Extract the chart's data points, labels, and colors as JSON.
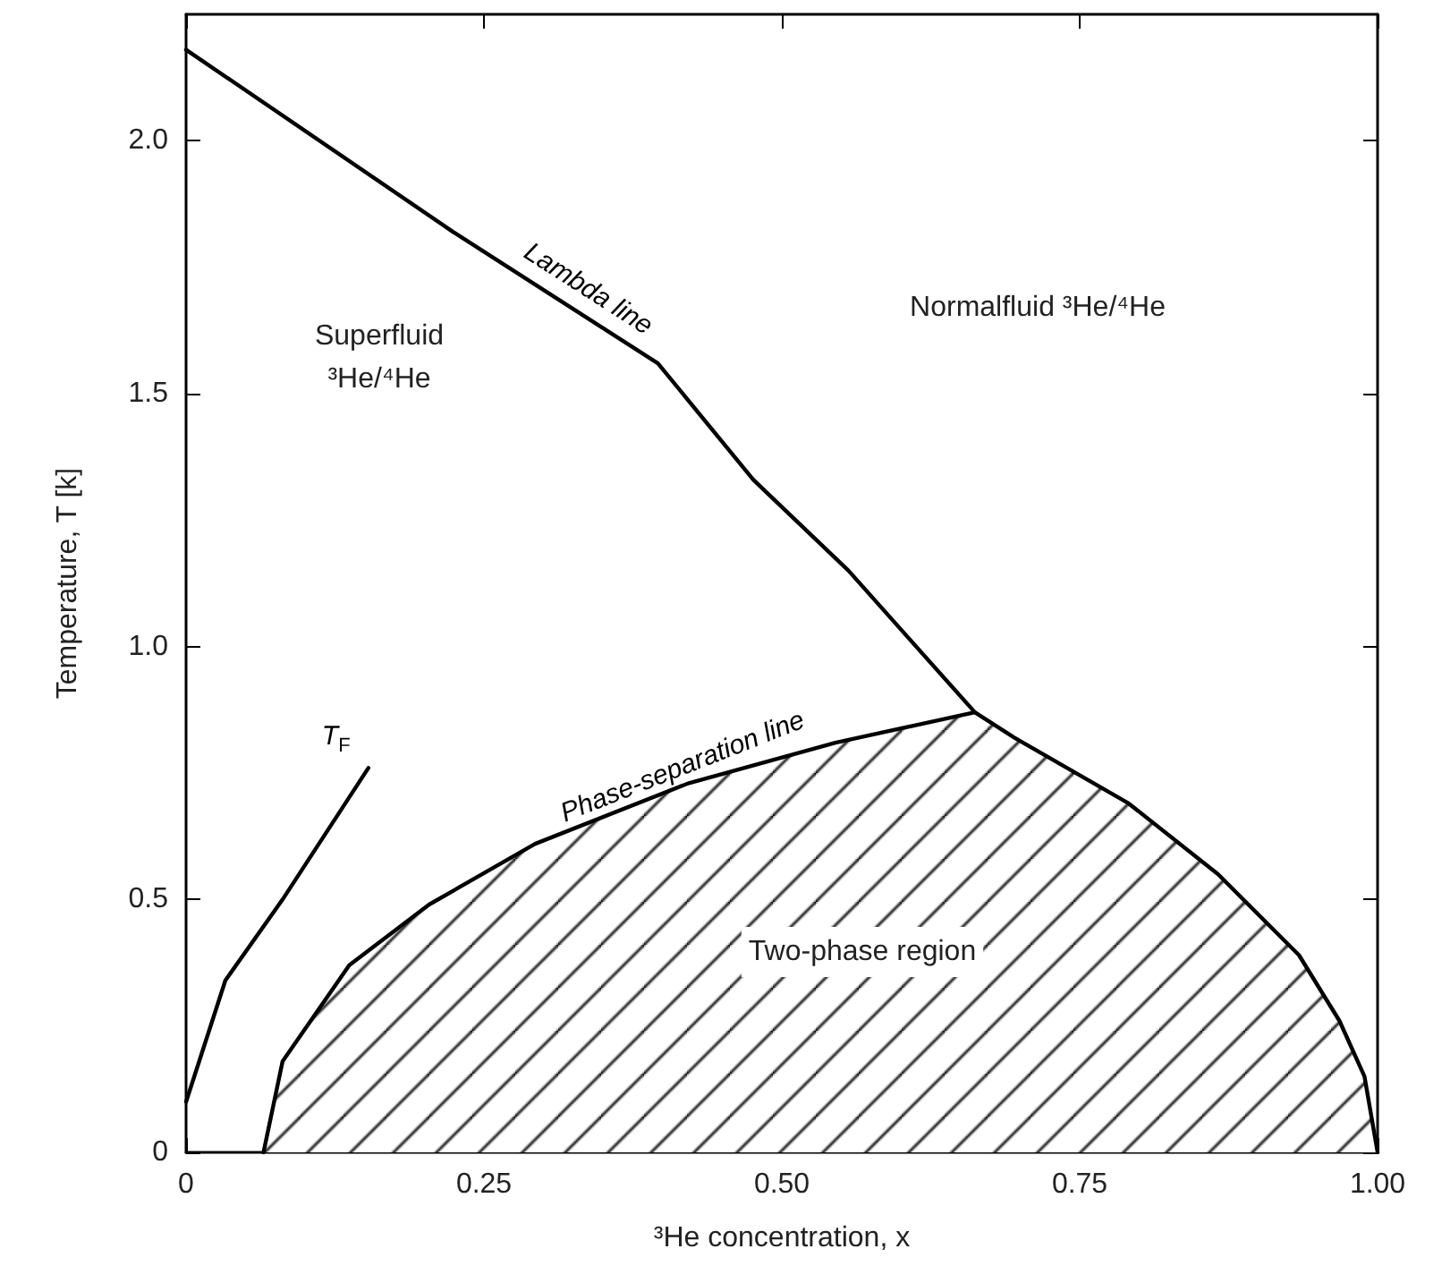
{
  "chart_data": {
    "type": "line",
    "xlabel": "³He concentration, x",
    "ylabel": "Temperature, T [k]",
    "xlim": [
      0,
      1
    ],
    "xticks": [
      0,
      {
        "value": 0.25,
        "label": "0.25"
      },
      {
        "value": 0.5,
        "label": "0.50"
      },
      {
        "value": 0.75,
        "label": "0.75"
      },
      {
        "value": 1,
        "label": "1.00"
      }
    ],
    "ylim": [
      0,
      2.25
    ],
    "yticks": [
      0,
      0.5,
      {
        "value": 1,
        "label": "1.0"
      },
      1.5,
      {
        "value": 2,
        "label": "2.0"
      }
    ],
    "grid": false,
    "legend": false,
    "marker": "none",
    "line_style": "solid",
    "series": [
      {
        "name": "Lambda line",
        "type": "line",
        "color": "#000000",
        "x": [
          0,
          0.224,
          0.396,
          0.476,
          0.556,
          0.662
        ],
        "values": [
          2.18,
          1.82,
          1.56,
          1.33,
          1.15,
          0.87
        ]
      },
      {
        "name": "Phase-separation line",
        "type": "area",
        "color": "#000000",
        "x": [
          0.065,
          0.081,
          0.137,
          0.204,
          0.293,
          0.422,
          0.545,
          0.662,
          0.695,
          0.791,
          0.866,
          0.934,
          0.968,
          0.989,
          1.0
        ],
        "values": [
          0,
          0.18,
          0.37,
          0.49,
          0.61,
          0.73,
          0.81,
          0.87,
          0.82,
          0.69,
          0.55,
          0.39,
          0.26,
          0.15,
          0
        ]
      },
      {
        "name": "T$_{F}$",
        "type": "line",
        "color": "#000000",
        "x": [
          0,
          0.033,
          0.081,
          0.153
        ],
        "values": [
          0.1,
          0.34,
          0.5,
          0.76
        ]
      }
    ],
    "annotations": [
      "Superfluid\n³He/⁴He",
      "Normalfluid ³He/⁴He",
      "Two-phase region"
    ]
  }
}
